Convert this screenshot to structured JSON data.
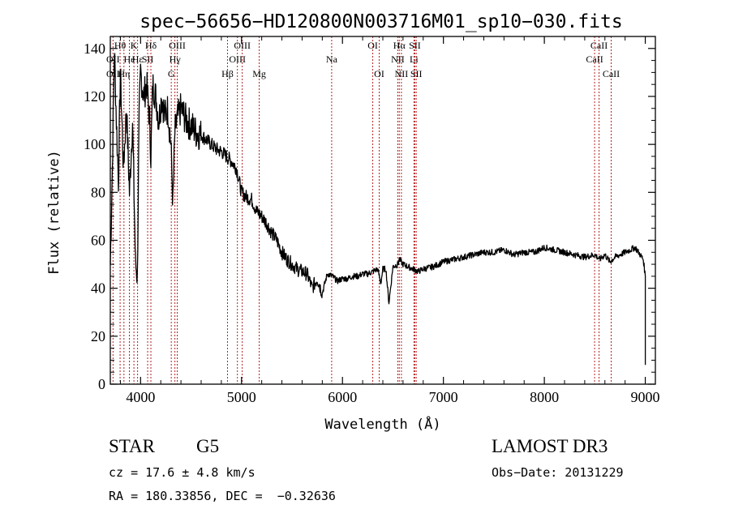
{
  "chart_data": {
    "type": "line",
    "title": "spec−56656−HD120800N003716M01_sp10−030.fits",
    "xlabel": "Wavelength (Å)",
    "ylabel": "Flux (relative)",
    "xlim": [
      3700,
      9100
    ],
    "ylim": [
      0,
      145
    ],
    "xticks": [
      4000,
      5000,
      6000,
      7000,
      8000,
      9000
    ],
    "yticks": [
      0,
      20,
      40,
      60,
      80,
      100,
      120,
      140
    ],
    "series": [
      {
        "name": "spectrum",
        "x": [
          3700,
          3720,
          3740,
          3760,
          3780,
          3800,
          3830,
          3860,
          3890,
          3920,
          3950,
          3968,
          3985,
          4000,
          4030,
          4060,
          4090,
          4102,
          4120,
          4150,
          4180,
          4210,
          4240,
          4270,
          4300,
          4320,
          4340,
          4360,
          4400,
          4450,
          4500,
          4550,
          4600,
          4650,
          4700,
          4750,
          4800,
          4850,
          4900,
          4950,
          5000,
          5050,
          5100,
          5150,
          5200,
          5250,
          5300,
          5350,
          5400,
          5450,
          5500,
          5550,
          5600,
          5650,
          5700,
          5750,
          5800,
          5850,
          5900,
          5950,
          6000,
          6050,
          6100,
          6150,
          6200,
          6250,
          6300,
          6350,
          6380,
          6400,
          6430,
          6460,
          6500,
          6550,
          6563,
          6600,
          6650,
          6700,
          6750,
          6800,
          6900,
          7000,
          7100,
          7200,
          7300,
          7400,
          7500,
          7600,
          7700,
          7800,
          7900,
          8000,
          8100,
          8200,
          8300,
          8400,
          8500,
          8550,
          8600,
          8650,
          8700,
          8800,
          8900,
          8950,
          8980,
          9000
        ],
        "values": [
          50,
          90,
          140,
          110,
          85,
          130,
          90,
          115,
          80,
          110,
          50,
          45,
          110,
          130,
          120,
          125,
          110,
          95,
          125,
          120,
          110,
          120,
          112,
          115,
          100,
          75,
          105,
          110,
          115,
          110,
          108,
          105,
          104,
          102,
          100,
          98,
          97,
          95,
          93,
          90,
          80,
          78,
          77,
          72,
          70,
          67,
          63,
          60,
          55,
          52,
          50,
          48,
          47,
          46,
          40,
          44,
          38,
          46,
          45,
          43,
          44,
          44,
          45,
          45,
          46,
          46,
          47,
          48,
          42,
          48,
          48,
          34,
          49,
          50,
          52,
          50,
          49,
          48,
          47,
          48,
          49,
          51,
          52,
          53,
          54,
          55,
          55,
          56,
          54,
          55,
          55,
          57,
          56,
          55,
          54,
          53,
          54,
          52,
          54,
          51,
          53,
          55,
          57,
          54,
          52,
          45
        ]
      }
    ],
    "lines": [
      {
        "label": "Hθ",
        "x": 3797,
        "row": 0
      },
      {
        "label": "OII",
        "x": 3727,
        "row": 1
      },
      {
        "label": "OII",
        "x": 3727,
        "row": 2
      },
      {
        "label": "He",
        "x": 3889,
        "row": 1
      },
      {
        "label": "Hη",
        "x": 3835,
        "row": 2
      },
      {
        "label": "K",
        "x": 3934,
        "row": 0
      },
      {
        "label": "Hε",
        "x": 3970,
        "row": 1
      },
      {
        "label": "Hδ",
        "x": 4102,
        "row": 0
      },
      {
        "label": "SII",
        "x": 4070,
        "row": 1
      },
      {
        "label": "OIII",
        "x": 4363,
        "row": 0
      },
      {
        "label": "Hγ",
        "x": 4340,
        "row": 1
      },
      {
        "label": "G",
        "x": 4304,
        "row": 2
      },
      {
        "label": "Hβ",
        "x": 4861,
        "row": 2
      },
      {
        "label": "OIII",
        "x": 5007,
        "row": 0
      },
      {
        "label": "OIII",
        "x": 4959,
        "row": 1
      },
      {
        "label": "Mg",
        "x": 5175,
        "row": 2
      },
      {
        "label": "Na",
        "x": 5893,
        "row": 1
      },
      {
        "label": "OI",
        "x": 6300,
        "row": 0
      },
      {
        "label": "OI",
        "x": 6364,
        "row": 2
      },
      {
        "label": "Hα",
        "x": 6563,
        "row": 0
      },
      {
        "label": "NII",
        "x": 6548,
        "row": 1
      },
      {
        "label": "NII",
        "x": 6584,
        "row": 2
      },
      {
        "label": "SII",
        "x": 6717,
        "row": 0
      },
      {
        "label": "Li",
        "x": 6708,
        "row": 1
      },
      {
        "label": "SII",
        "x": 6731,
        "row": 2
      },
      {
        "label": "CaII",
        "x": 8542,
        "row": 0
      },
      {
        "label": "CaII",
        "x": 8498,
        "row": 1
      },
      {
        "label": "CaII",
        "x": 8662,
        "row": 2
      }
    ]
  },
  "info": {
    "class": "STAR",
    "subclass": "G5",
    "cz": "cz = 17.6 ± 4.8 km/s",
    "radec": "RA = 180.33856, DEC =  −0.32636",
    "survey": "LAMOST DR3",
    "obsdate": "Obs−Date: 20131229"
  },
  "colors": {
    "spectrum": "#000000",
    "marker": "#b22222"
  }
}
